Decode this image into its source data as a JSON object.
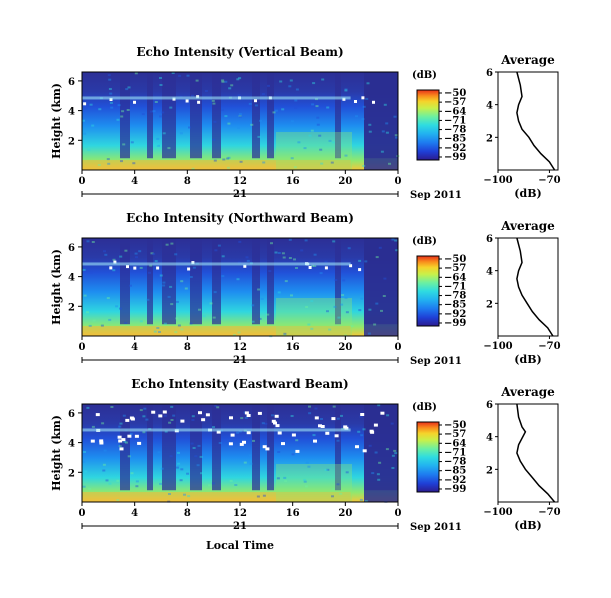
{
  "chart_data": {
    "type": "heatmap",
    "x_ticks": [
      "0",
      "4",
      "8",
      "12",
      "16",
      "20",
      "0"
    ],
    "y_ticks": [
      "2",
      "4",
      "6"
    ],
    "date_day": "21",
    "date_month_year": "Sep 2011",
    "ylabel": "Height (km)",
    "xlabel": "Local Time",
    "colorbar": {
      "unit": "(dB)",
      "ticks": [
        "−50",
        "−57",
        "−64",
        "−71",
        "−78",
        "−85",
        "−92",
        "−99"
      ],
      "colors": [
        "#2b1b8f",
        "#1f3fd6",
        "#1e7cf0",
        "#22b4f0",
        "#2fdce0",
        "#6df0a0",
        "#c8f04a",
        "#f6d22a",
        "#f88a1c",
        "#e8301a"
      ]
    },
    "panels": [
      {
        "title": "Echo Intensity (Vertical Beam)",
        "profile": {
          "title": "Average",
          "xlabel": "(dB)",
          "xticks": [
            "−100",
            "−70"
          ],
          "yticks": [
            "2",
            "4",
            "6"
          ],
          "xlim": [
            -100,
            -65
          ],
          "ylim": [
            0,
            6
          ],
          "x": [
            -67,
            -70,
            -75,
            -79,
            -82,
            -86,
            -88,
            -89,
            -88,
            -86,
            -87,
            -89
          ],
          "y": [
            0.0,
            0.5,
            1.0,
            1.5,
            2.0,
            2.5,
            3.0,
            3.5,
            4.0,
            4.5,
            5.2,
            6.0
          ]
        }
      },
      {
        "title": "Echo Intensity (Northward Beam)",
        "profile": {
          "title": "Average",
          "xlabel": "(dB)",
          "xticks": [
            "−100",
            "−70"
          ],
          "yticks": [
            "2",
            "4",
            "6"
          ],
          "xlim": [
            -100,
            -65
          ],
          "ylim": [
            0,
            6
          ],
          "x": [
            -68,
            -71,
            -76,
            -80,
            -83,
            -86,
            -88,
            -89,
            -88,
            -86,
            -87,
            -89
          ],
          "y": [
            0.0,
            0.5,
            1.0,
            1.5,
            2.0,
            2.5,
            3.0,
            3.5,
            4.0,
            4.5,
            5.2,
            6.0
          ]
        }
      },
      {
        "title": "Echo Intensity (Eastward Beam)",
        "profile": {
          "title": "Average",
          "xlabel": "(dB)",
          "xticks": [
            "−100",
            "−70"
          ],
          "yticks": [
            "2",
            "4",
            "6"
          ],
          "xlim": [
            -100,
            -65
          ],
          "ylim": [
            0,
            6
          ],
          "x": [
            -67,
            -71,
            -76,
            -80,
            -84,
            -87,
            -89,
            -88,
            -84,
            -86,
            -88,
            -89
          ],
          "y": [
            0.0,
            0.5,
            1.0,
            1.5,
            2.0,
            2.5,
            3.0,
            3.5,
            4.3,
            4.6,
            5.2,
            6.0
          ]
        }
      }
    ]
  }
}
